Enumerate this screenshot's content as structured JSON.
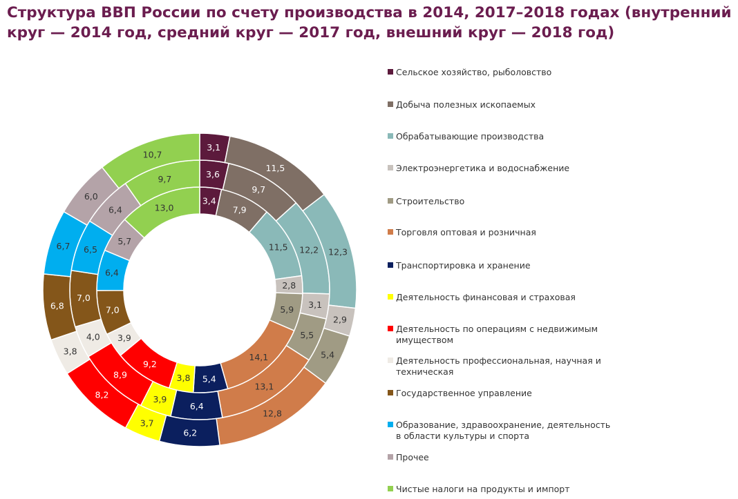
{
  "chart_data": {
    "type": "pie",
    "variant": "nested-donut",
    "title": "Структура ВВП России по счету производства в 2014, 2017–2018 годах (внутренний круг — 2014 год, средний круг — 2017 год, внешний круг — 2018 год)",
    "legend_position": "right",
    "categories": [
      {
        "label": "Сельское хозяйство, рыболовство",
        "color": "#5c1a3c"
      },
      {
        "label": "Добыча полезных ископаемых",
        "color": "#7f6f65"
      },
      {
        "label": "Обрабатывающие производства",
        "color": "#8ab9b8"
      },
      {
        "label": "Электроэнергетика и водоснабжение",
        "color": "#c8c2bd"
      },
      {
        "label": "Строительство",
        "color": "#a09b84"
      },
      {
        "label": "Торговля оптовая и розничная",
        "color": "#d07c4a"
      },
      {
        "label": "Транспортировка и хранение",
        "color": "#0b1f5e"
      },
      {
        "label": "Деятельность финансовая и страховая",
        "color": "#ffff00"
      },
      {
        "label": "Деятельность по операциям с недвижимым имуществом",
        "color": "#ff0000"
      },
      {
        "label": "Деятельность профессиональная, научная и техническая",
        "color": "#efebe5"
      },
      {
        "label": "Государственное управление",
        "color": "#84561a"
      },
      {
        "label": "Образование, здравоохранение, деятельность в области культуры и спорта",
        "color": "#00aeef"
      },
      {
        "label": "Прочее",
        "color": "#b4a3a8"
      },
      {
        "label": "Чистые налоги на продукты и импорт",
        "color": "#92d050"
      }
    ],
    "series": [
      {
        "year": "2014",
        "ring": "inner",
        "values": [
          3.4,
          7.9,
          11.5,
          2.8,
          5.9,
          14.1,
          5.4,
          3.8,
          9.2,
          3.9,
          7.0,
          6.4,
          5.7,
          13.0
        ],
        "labels": [
          "3,4",
          "7,9",
          "11,5",
          "2,8",
          "5,9",
          "14,1",
          "5,4",
          "3,8",
          "9,2",
          "3,9",
          "7,0",
          "6,4",
          "5,7",
          "13,0"
        ]
      },
      {
        "year": "2017",
        "ring": "middle",
        "values": [
          3.6,
          9.7,
          12.2,
          3.1,
          5.5,
          13.1,
          6.4,
          3.9,
          8.9,
          4.0,
          7.0,
          6.5,
          6.4,
          9.7
        ],
        "labels": [
          "3,6",
          "9,7",
          "12,2",
          "3,1",
          "5,5",
          "13,1",
          "6,4",
          "3,9",
          "8,9",
          "4,0",
          "7,0",
          "6,5",
          "6,4",
          "9,7"
        ]
      },
      {
        "year": "2018",
        "ring": "outer",
        "values": [
          3.1,
          11.5,
          12.3,
          2.9,
          5.4,
          12.8,
          6.2,
          3.7,
          8.2,
          3.8,
          6.8,
          6.7,
          6.0,
          10.7
        ],
        "labels": [
          "3,1",
          "11,5",
          "12,3",
          "2,9",
          "5,4",
          "12,8",
          "6,2",
          "3,7",
          "8,2",
          "3,8",
          "6,8",
          "6,7",
          "6,0",
          "10,7"
        ]
      }
    ]
  }
}
